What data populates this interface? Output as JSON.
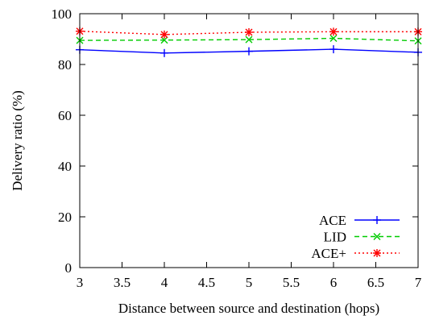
{
  "chart_data": {
    "type": "line",
    "title": "",
    "xlabel": "Distance between source and destination (hops)",
    "ylabel": "Delivery ratio (%)",
    "xlim": [
      3,
      7
    ],
    "ylim": [
      0,
      100
    ],
    "x_ticks": [
      "3",
      "3.5",
      "4",
      "4.5",
      "5",
      "5.5",
      "6",
      "6.5",
      "7"
    ],
    "y_ticks": [
      "0",
      "20",
      "40",
      "60",
      "80",
      "100"
    ],
    "x": [
      3,
      4,
      5,
      6,
      7
    ],
    "grid": false,
    "legend_position": "bottom-right",
    "series": [
      {
        "name": "ACE",
        "values": [
          85.8,
          84.5,
          85.2,
          86.0,
          84.8
        ],
        "color": "#0000ff",
        "marker": "plus",
        "dash": "solid"
      },
      {
        "name": "LID",
        "values": [
          89.5,
          89.6,
          89.8,
          90.3,
          89.3
        ],
        "color": "#00cc00",
        "marker": "cross",
        "dash": "dashed"
      },
      {
        "name": "ACE+",
        "values": [
          93.1,
          91.8,
          92.7,
          92.9,
          92.9
        ],
        "color": "#ff0000",
        "marker": "asterisk",
        "dash": "dotted"
      }
    ]
  }
}
